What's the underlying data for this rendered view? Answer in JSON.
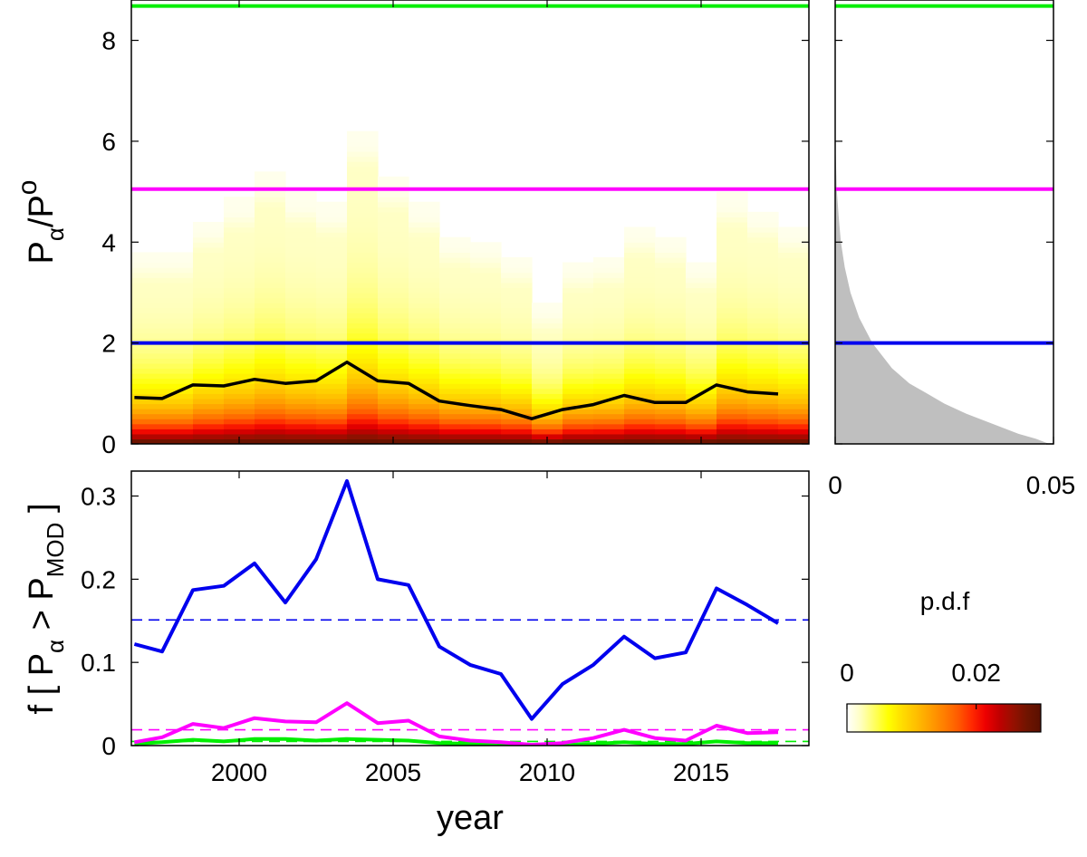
{
  "chart_data": [
    {
      "type": "heatmap",
      "panel": "top-main",
      "ylabel": {
        "base": "P",
        "sub": "α",
        "sep": "/P",
        "sub2": "o"
      },
      "xlim": [
        1996.5,
        2018.5
      ],
      "ylim": [
        0,
        8.8
      ],
      "yticks": [
        "0",
        "2",
        "4",
        "6",
        "8"
      ],
      "yticks_values": [
        0,
        2,
        4,
        6,
        8
      ],
      "years": [
        1997,
        1998,
        1999,
        2000,
        2001,
        2002,
        2003,
        2004,
        2005,
        2006,
        2007,
        2008,
        2009,
        2010,
        2011,
        2012,
        2013,
        2014,
        2015,
        2016,
        2017,
        2018
      ],
      "column_max": [
        3.8,
        3.8,
        4.4,
        4.8,
        5.3,
        4.9,
        4.7,
        6.1,
        5.2,
        4.7,
        4.1,
        4.0,
        3.7,
        2.8,
        3.6,
        3.7,
        4.3,
        4.1,
        3.6,
        4.9,
        4.6,
        4.3
      ],
      "median_line": {
        "x": [
          1996.6,
          1997.5,
          1998.5,
          1999.5,
          2000.5,
          2001.5,
          2002.5,
          2003.5,
          2004.5,
          2005.5,
          2006.5,
          2007.5,
          2008.5,
          2009.5,
          2010.5,
          2011.5,
          2012.5,
          2013.5,
          2014.5,
          2015.5,
          2016.5,
          2017.5
        ],
        "y": [
          0.92,
          0.9,
          1.17,
          1.15,
          1.28,
          1.2,
          1.25,
          1.62,
          1.25,
          1.2,
          0.85,
          0.76,
          0.68,
          0.5,
          0.68,
          0.78,
          0.96,
          0.82,
          0.82,
          1.17,
          1.03,
          0.99
        ],
        "color": "#000000"
      },
      "threshold_lines": [
        {
          "y": 2.0,
          "color": "#0000ee"
        },
        {
          "y": 5.05,
          "color": "#ff00ff"
        },
        {
          "y": 8.68,
          "color": "#00ee00"
        }
      ]
    },
    {
      "type": "area",
      "panel": "top-right",
      "xlim": [
        0,
        0.05
      ],
      "xticks": [
        "0",
        "0.05"
      ],
      "xticks_values": [
        0,
        0.05
      ],
      "ylim": [
        0,
        8.8
      ],
      "fill_color": "#bfbfbf",
      "pdf_y": [
        0,
        0.1,
        0.2,
        0.4,
        0.6,
        0.8,
        1.0,
        1.2,
        1.5,
        2.0,
        2.5,
        3.0,
        3.5,
        4.0,
        4.5,
        5.0,
        5.5,
        6.0
      ],
      "pdf_x": [
        0.049,
        0.046,
        0.042,
        0.036,
        0.03,
        0.025,
        0.021,
        0.017,
        0.013,
        0.0085,
        0.0055,
        0.0035,
        0.0022,
        0.0013,
        0.0008,
        0.0004,
        0.0002,
        0.0
      ],
      "threshold_lines": [
        {
          "y": 2.0,
          "color": "#0000ee"
        },
        {
          "y": 5.05,
          "color": "#ff00ff"
        },
        {
          "y": 8.68,
          "color": "#00ee00"
        }
      ]
    },
    {
      "type": "line",
      "panel": "bottom",
      "xlabel": "year",
      "ylabel": {
        "prefix": "f [ P",
        "sub": "α",
        "mid": " > P",
        "sub2": "MOD",
        "suffix": " ]"
      },
      "xlim": [
        1996.5,
        2018.5
      ],
      "ylim": [
        0,
        0.33
      ],
      "xticks": [
        "2000",
        "2005",
        "2010",
        "2015"
      ],
      "xticks_values": [
        2000,
        2005,
        2010,
        2015
      ],
      "yticks": [
        "0",
        "0.1",
        "0.2",
        "0.3"
      ],
      "yticks_values": [
        0,
        0.1,
        0.2,
        0.3
      ],
      "x": [
        1996.6,
        1997.5,
        1998.5,
        1999.5,
        2000.5,
        2001.5,
        2002.5,
        2003.5,
        2004.5,
        2005.5,
        2006.5,
        2007.5,
        2008.5,
        2009.5,
        2010.5,
        2011.5,
        2012.5,
        2013.5,
        2014.5,
        2015.5,
        2016.5,
        2017.5
      ],
      "series": [
        {
          "color": "#0000ee",
          "values": [
            0.122,
            0.113,
            0.187,
            0.192,
            0.219,
            0.172,
            0.224,
            0.318,
            0.2,
            0.193,
            0.119,
            0.097,
            0.086,
            0.032,
            0.074,
            0.097,
            0.131,
            0.105,
            0.112,
            0.189,
            0.169,
            0.147
          ]
        },
        {
          "color": "#ff00ff",
          "values": [
            0.004,
            0.01,
            0.026,
            0.021,
            0.033,
            0.029,
            0.028,
            0.051,
            0.027,
            0.03,
            0.011,
            0.006,
            0.004,
            0.001,
            0.003,
            0.009,
            0.019,
            0.009,
            0.006,
            0.024,
            0.015,
            0.016
          ]
        },
        {
          "color": "#00ee00",
          "values": [
            0.002,
            0.004,
            0.007,
            0.005,
            0.008,
            0.008,
            0.006,
            0.008,
            0.007,
            0.006,
            0.003,
            0.002,
            0.001,
            0.0,
            0.001,
            0.002,
            0.004,
            0.002,
            0.002,
            0.005,
            0.003,
            0.003
          ]
        }
      ],
      "mean_lines": [
        {
          "y": 0.151,
          "color": "#0000ee"
        },
        {
          "y": 0.019,
          "color": "#ff00ff"
        },
        {
          "y": 0.005,
          "color": "#00ee00"
        }
      ]
    }
  ],
  "colorbar": {
    "title": "p.d.f",
    "ticks": [
      "0",
      "0.02"
    ],
    "ticks_values": [
      0,
      0.02
    ],
    "range": [
      0,
      0.03
    ],
    "stops": [
      "#ffffff",
      "#ffffc0",
      "#ffff60",
      "#ffff00",
      "#ffdc00",
      "#ffbf00",
      "#ff9f00",
      "#ff7f00",
      "#ff5c00",
      "#ff2a00",
      "#ee0000",
      "#c00000",
      "#961000",
      "#701400",
      "#5a1000"
    ]
  }
}
